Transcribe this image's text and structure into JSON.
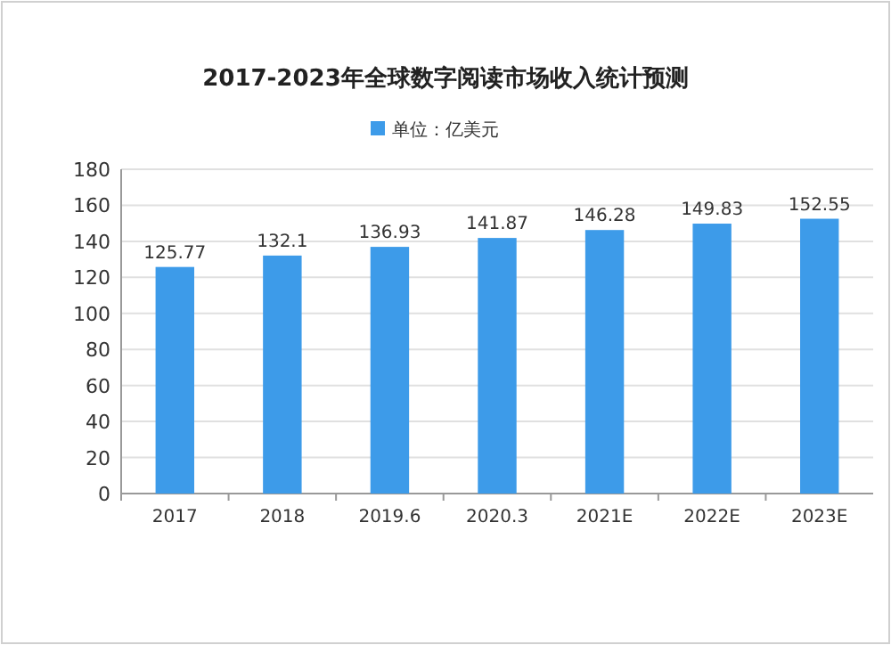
{
  "chart_data": {
    "type": "bar",
    "title": "2017-2023年全球数字阅读市场收入统计预测",
    "categories": [
      "2017",
      "2018",
      "2019.6",
      "2020.3",
      "2021E",
      "2022E",
      "2023E"
    ],
    "series": [
      {
        "name": "单位：亿美元",
        "color": "#3d9be9",
        "values": [
          125.77,
          132.1,
          136.93,
          141.87,
          146.28,
          149.83,
          152.55
        ]
      }
    ],
    "ylim": [
      0,
      180
    ],
    "yticks": [
      0,
      20,
      40,
      60,
      80,
      100,
      120,
      140,
      160,
      180
    ],
    "grid": "y",
    "legend": "top",
    "data_labels": true
  }
}
